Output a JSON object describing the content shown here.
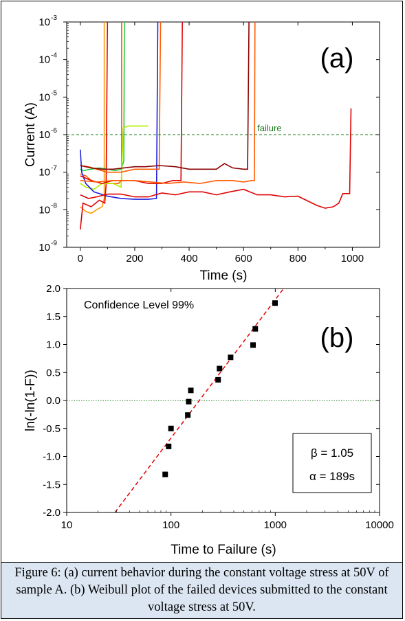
{
  "chart_data": [
    {
      "panel": "(a)",
      "type": "line",
      "xlabel": "Time (s)",
      "ylabel": "Current (A)",
      "xlim": [
        -50,
        1100
      ],
      "ylim": [
        1e-09,
        0.001
      ],
      "yscale": "log",
      "xticks": [
        0,
        200,
        400,
        600,
        800,
        1000
      ],
      "xtick_labels": [
        "0",
        "200",
        "400",
        "600",
        "800",
        "1000"
      ],
      "yticks": [
        1e-09,
        1e-08,
        1e-07,
        1e-06,
        1e-05,
        0.0001,
        0.001
      ],
      "ytick_labels": [
        {
          "base": "10",
          "exp": "-9"
        },
        {
          "base": "10",
          "exp": "-8"
        },
        {
          "base": "10",
          "exp": "-7"
        },
        {
          "base": "10",
          "exp": "-6"
        },
        {
          "base": "10",
          "exp": "-5"
        },
        {
          "base": "10",
          "exp": "-4"
        },
        {
          "base": "10",
          "exp": "-3"
        }
      ],
      "threshold": {
        "y": 1e-06,
        "label": "failure",
        "color": "#1a7a1a"
      },
      "series": [
        {
          "color": "#ff9900",
          "points": [
            [
              0,
              1.2e-08
            ],
            [
              20,
              9e-09
            ],
            [
              40,
              8e-09
            ],
            [
              60,
              1e-08
            ],
            [
              80,
              1.2e-08
            ],
            [
              88,
              2e-08
            ],
            [
              88,
              0.001
            ]
          ]
        },
        {
          "color": "#e00000",
          "points": [
            [
              0,
              3e-09
            ],
            [
              10,
              1.5e-08
            ],
            [
              40,
              1.2e-08
            ],
            [
              70,
              1.8e-08
            ],
            [
              90,
              1.5e-08
            ],
            [
              95,
              5e-08
            ],
            [
              100,
              0.001
            ]
          ]
        },
        {
          "color": "#ff5a00",
          "points": [
            [
              0,
              9e-08
            ],
            [
              20,
              8e-08
            ],
            [
              40,
              6e-08
            ],
            [
              60,
              5.5e-08
            ],
            [
              80,
              5e-08
            ],
            [
              110,
              5e-08
            ],
            [
              140,
              5e-08
            ],
            [
              152,
              6e-08
            ],
            [
              152,
              0.001
            ]
          ]
        },
        {
          "color": "#22cc44",
          "points": [
            [
              0,
              1.2e-07
            ],
            [
              10,
              1.1e-07
            ],
            [
              40,
              1.2e-07
            ],
            [
              70,
              1.3e-07
            ],
            [
              100,
              1.2e-07
            ],
            [
              130,
              1.1e-07
            ],
            [
              150,
              1.2e-07
            ],
            [
              160,
              2e-07
            ],
            [
              162,
              0.001
            ]
          ]
        },
        {
          "color": "#b0f000",
          "points": [
            [
              0,
              5e-08
            ],
            [
              20,
              4e-08
            ],
            [
              50,
              3.5e-08
            ],
            [
              80,
              5e-08
            ],
            [
              120,
              5e-08
            ],
            [
              150,
              4e-08
            ],
            [
              158,
              1.5e-06
            ],
            [
              175,
              1.7e-06
            ],
            [
              200,
              1.7e-06
            ],
            [
              225,
              1.7e-06
            ],
            [
              250,
              1.7e-06
            ]
          ]
        },
        {
          "color": "#1f1fe0",
          "points": [
            [
              0,
              4e-07
            ],
            [
              5,
              1e-07
            ],
            [
              20,
              5e-08
            ],
            [
              50,
              3e-08
            ],
            [
              100,
              2.3e-08
            ],
            [
              150,
              2e-08
            ],
            [
              200,
              1.9e-08
            ],
            [
              250,
              1.9e-08
            ],
            [
              280,
              2e-08
            ],
            [
              285,
              0.001
            ]
          ]
        },
        {
          "color": "#ff5a00",
          "points": [
            [
              0,
              1.5e-07
            ],
            [
              30,
              1.4e-07
            ],
            [
              60,
              1.2e-07
            ],
            [
              100,
              1e-07
            ],
            [
              150,
              1e-07
            ],
            [
              200,
              1.2e-07
            ],
            [
              250,
              1.2e-07
            ],
            [
              290,
              1.2e-07
            ],
            [
              295,
              0.001
            ]
          ]
        },
        {
          "color": "#e00000",
          "points": [
            [
              0,
              8e-08
            ],
            [
              40,
              6e-08
            ],
            [
              80,
              5e-08
            ],
            [
              120,
              6e-08
            ],
            [
              160,
              6e-08
            ],
            [
              200,
              6e-08
            ],
            [
              250,
              5e-08
            ],
            [
              300,
              5e-08
            ],
            [
              340,
              6e-08
            ],
            [
              370,
              6e-08
            ],
            [
              375,
              0.001
            ]
          ]
        },
        {
          "color": "#8b0000",
          "points": [
            [
              0,
              1.5e-07
            ],
            [
              40,
              1.3e-07
            ],
            [
              80,
              1.2e-07
            ],
            [
              120,
              1.2e-07
            ],
            [
              160,
              1.3e-07
            ],
            [
              200,
              1.4e-07
            ],
            [
              240,
              1.4e-07
            ],
            [
              290,
              1.5e-07
            ],
            [
              350,
              1.4e-07
            ],
            [
              400,
              1.2e-07
            ],
            [
              450,
              1.2e-07
            ],
            [
              500,
              1.2e-07
            ],
            [
              530,
              1.7e-07
            ],
            [
              560,
              1.3e-07
            ],
            [
              600,
              1.2e-07
            ],
            [
              615,
              1.2e-07
            ],
            [
              620,
              0.001
            ]
          ]
        },
        {
          "color": "#ff5a00",
          "points": [
            [
              0,
              6e-08
            ],
            [
              60,
              5.5e-08
            ],
            [
              120,
              6e-08
            ],
            [
              200,
              6e-08
            ],
            [
              260,
              5.5e-08
            ],
            [
              320,
              5e-08
            ],
            [
              380,
              5.5e-08
            ],
            [
              440,
              5e-08
            ],
            [
              500,
              6e-08
            ],
            [
              560,
              6e-08
            ],
            [
              600,
              5.5e-08
            ],
            [
              630,
              6e-08
            ],
            [
              640,
              6e-08
            ],
            [
              642,
              0.001
            ]
          ]
        },
        {
          "color": "#e00000",
          "points": [
            [
              0,
              2.5e-08
            ],
            [
              30,
              2e-08
            ],
            [
              60,
              2.2e-08
            ],
            [
              100,
              2.6e-08
            ],
            [
              150,
              2.6e-08
            ],
            [
              200,
              2.2e-08
            ],
            [
              250,
              2.2e-08
            ],
            [
              300,
              2.8e-08
            ],
            [
              350,
              2.5e-08
            ],
            [
              400,
              3e-08
            ],
            [
              450,
              3e-08
            ],
            [
              500,
              2.5e-08
            ],
            [
              550,
              3e-08
            ],
            [
              600,
              3.5e-08
            ],
            [
              650,
              2.5e-08
            ],
            [
              700,
              2.5e-08
            ],
            [
              750,
              2.2e-08
            ],
            [
              800,
              2.3e-08
            ],
            [
              830,
              1.8e-08
            ],
            [
              870,
              1.3e-08
            ],
            [
              900,
              1.1e-08
            ],
            [
              930,
              1.2e-08
            ],
            [
              950,
              1.5e-08
            ],
            [
              965,
              2.7e-08
            ],
            [
              990,
              2.7e-08
            ],
            [
              995,
              5e-06
            ]
          ]
        }
      ]
    },
    {
      "panel": "(b)",
      "type": "scatter",
      "xlabel": "Time to Failure (s)",
      "ylabel": "ln(-ln(1-F))",
      "xscale": "log",
      "xlim": [
        10,
        10000
      ],
      "ylim": [
        -2.0,
        2.0
      ],
      "xticks": [
        10,
        100,
        1000,
        10000
      ],
      "xtick_labels": [
        "10",
        "100",
        "1000",
        "10000"
      ],
      "yticks": [
        -2.0,
        -1.5,
        -1.0,
        -0.5,
        0.0,
        0.5,
        1.0,
        1.5,
        2.0
      ],
      "ytick_labels": [
        "-2.0",
        "-1.5",
        "-1.0",
        "-0.5",
        "0.0",
        "0.5",
        "1.0",
        "1.5",
        "2.0"
      ],
      "points": [
        {
          "x": 88,
          "y": -1.32
        },
        {
          "x": 95,
          "y": -0.82
        },
        {
          "x": 100,
          "y": -0.5
        },
        {
          "x": 145,
          "y": -0.26
        },
        {
          "x": 148,
          "y": -0.02
        },
        {
          "x": 155,
          "y": 0.18
        },
        {
          "x": 283,
          "y": 0.37
        },
        {
          "x": 292,
          "y": 0.57
        },
        {
          "x": 373,
          "y": 0.77
        },
        {
          "x": 612,
          "y": 0.99
        },
        {
          "x": 643,
          "y": 1.28
        },
        {
          "x": 995,
          "y": 1.74
        }
      ],
      "fit_line": {
        "x": [
          29,
          1203
        ],
        "y": [
          -2.0,
          2.0
        ],
        "color": "#e00000"
      },
      "zero_line": {
        "y": 0.0,
        "color": "#1a7a1a"
      },
      "annotation_top": "Confidence Level 99%",
      "params_box": {
        "beta": "β = 1.05",
        "alpha": "α = 189s"
      }
    }
  ],
  "panel_labels": {
    "a": "(a)",
    "b": "(b)"
  },
  "caption": "Figure 6: (a) current behavior during the constant voltage stress at 50V of sample A. (b) Weibull plot of the failed devices submitted to the constant voltage stress at 50V."
}
